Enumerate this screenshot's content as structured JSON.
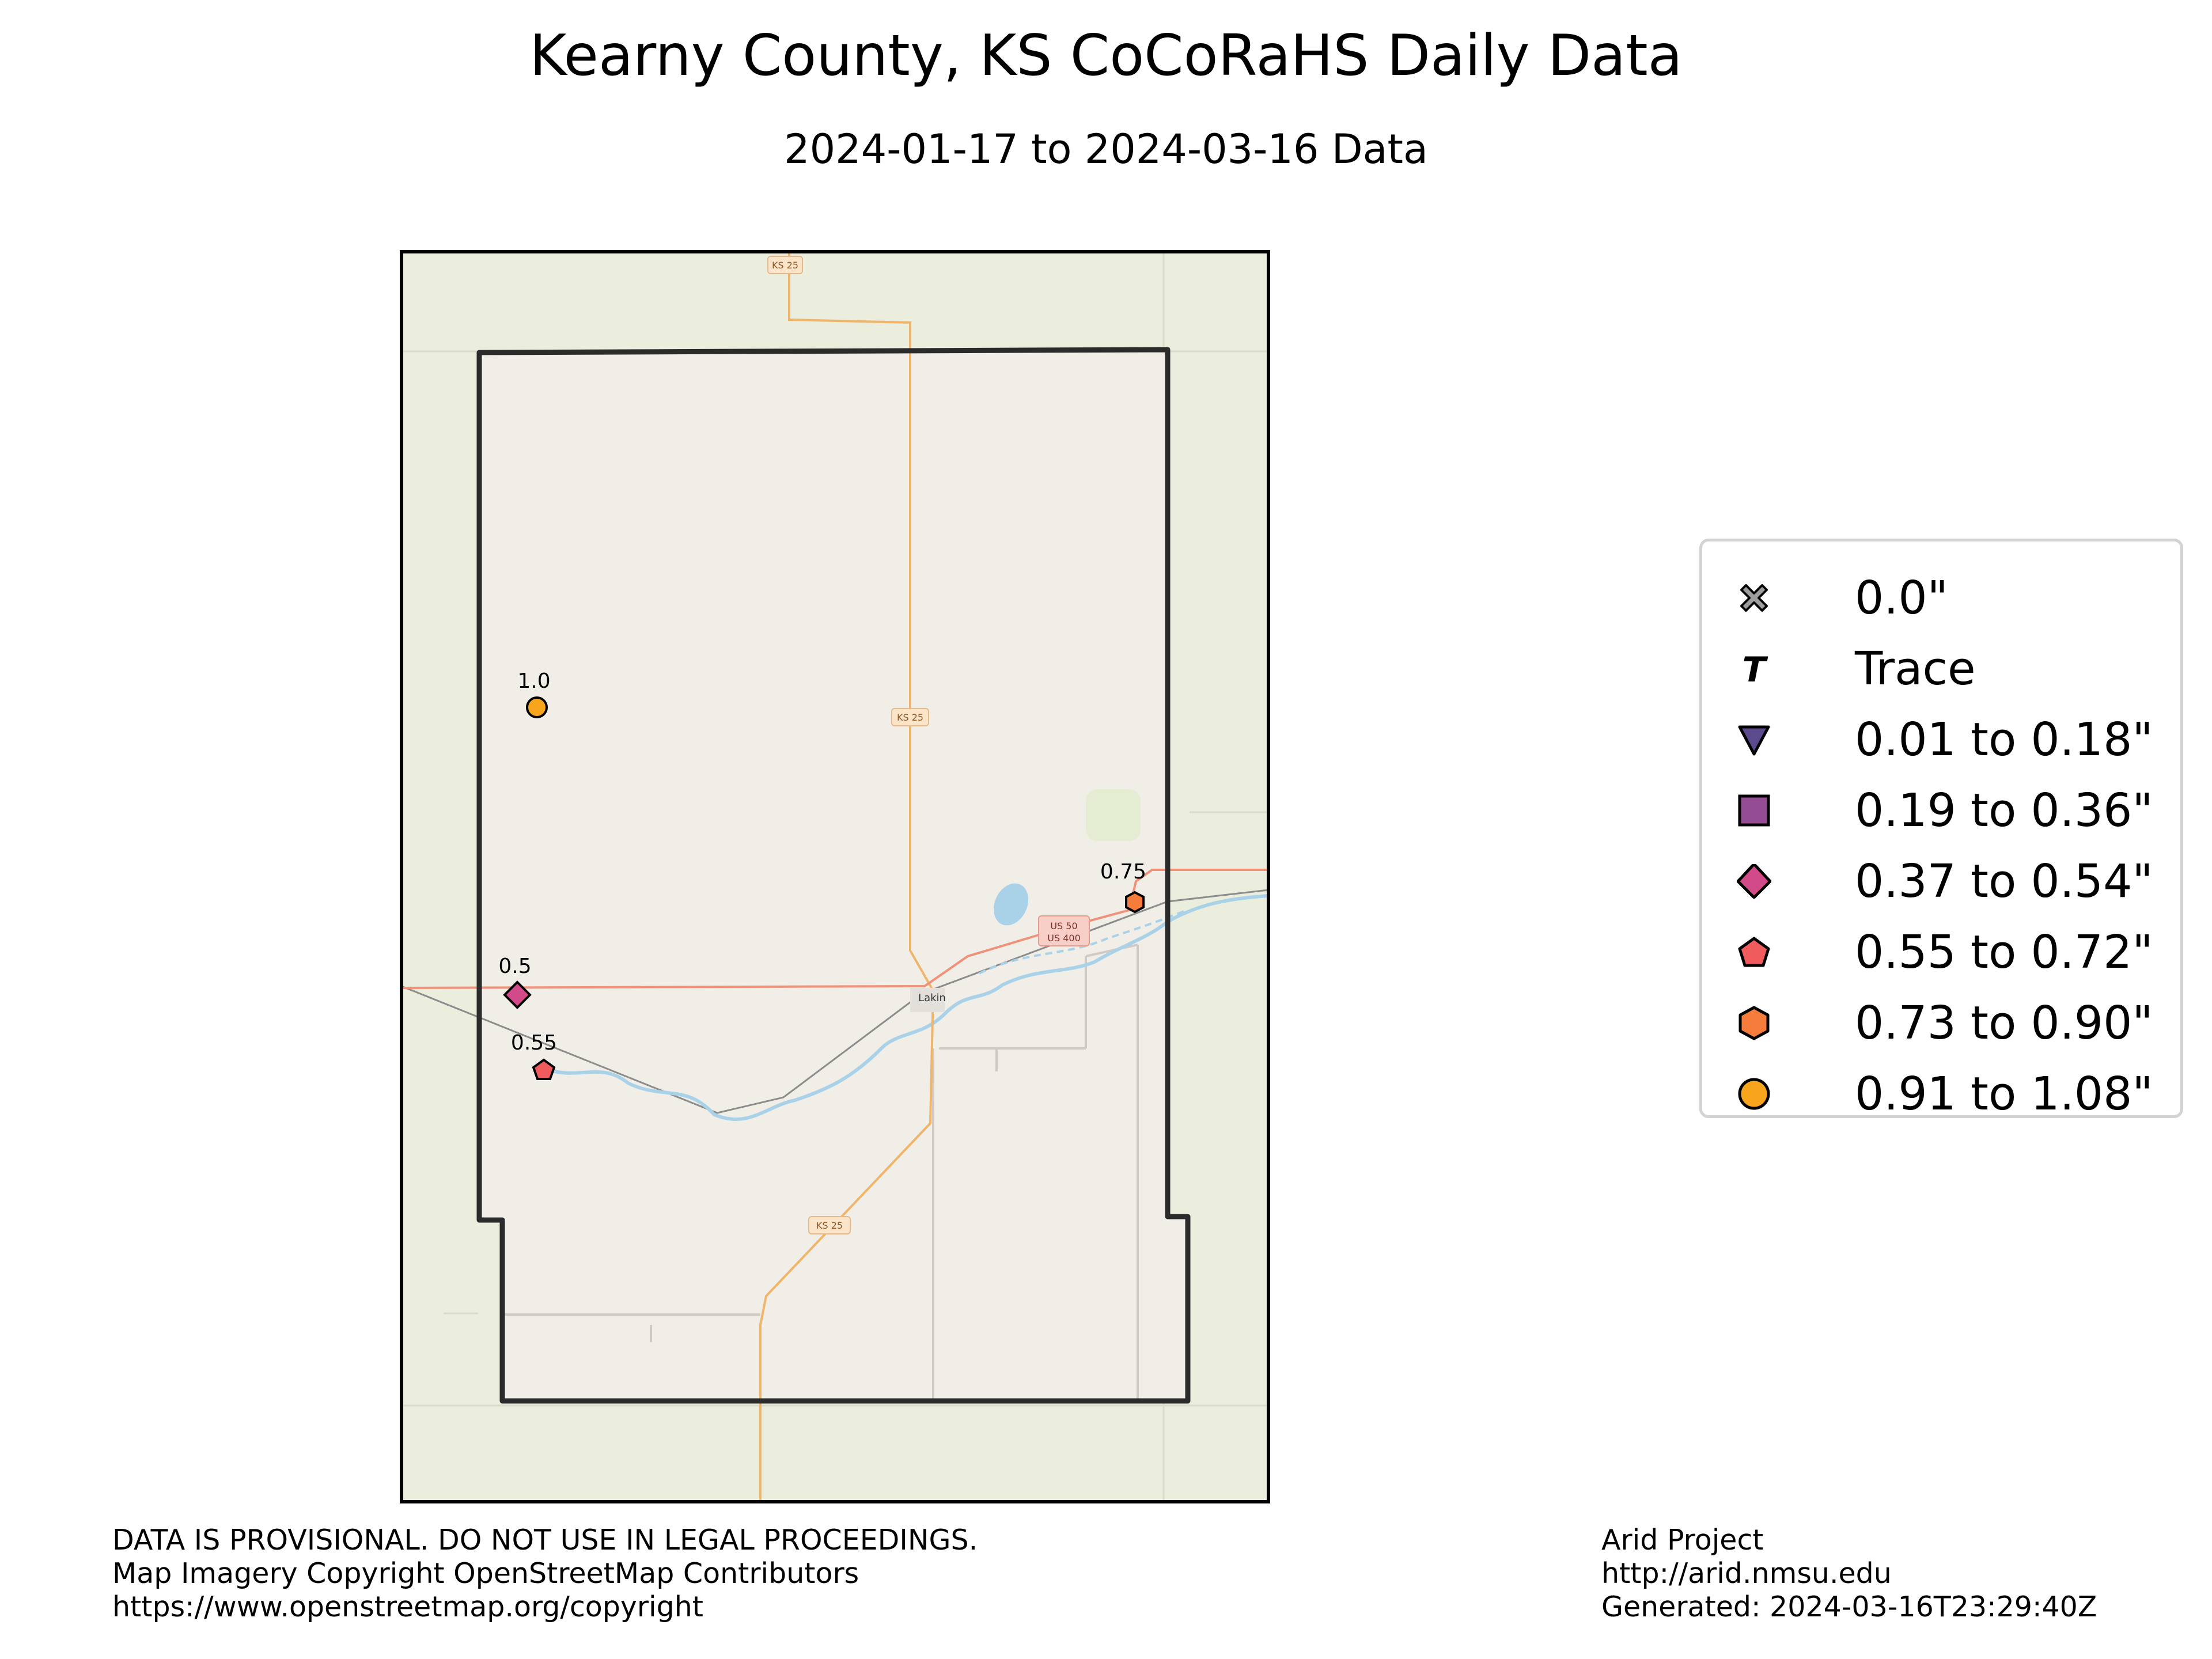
{
  "title": "Kearny County, KS CoCoRaHS Daily Data",
  "subtitle": "2024-01-17 to 2024-03-16 Data",
  "colors": {
    "zero": "#9e9e9e",
    "trace": "#000000",
    "bin1": "#5b4a8c",
    "bin2": "#944c94",
    "bin3": "#d34a8a",
    "bin4": "#f05b5e",
    "bin5": "#f57c3a",
    "bin6": "#f7a51c",
    "map_outer": "#ebeddd",
    "map_inner": "#f1eee8",
    "road_state": "#f0b56a",
    "road_us": "#f0917a",
    "water": "#a9d2e8"
  },
  "map": {
    "road_labels": [
      "KS 25",
      "KS 25",
      "KS 25",
      "US 50",
      "US 400"
    ],
    "town_label": "Lakin",
    "stations": [
      {
        "label": "1.0",
        "value": 1.0,
        "symbol": "circle",
        "color": "#f7a51c"
      },
      {
        "label": "0.75",
        "value": 0.75,
        "symbol": "hexagon",
        "color": "#f57c3a"
      },
      {
        "label": "0.5",
        "value": 0.5,
        "symbol": "diamond",
        "color": "#d34a8a"
      },
      {
        "label": "0.55",
        "value": 0.55,
        "symbol": "pentagon",
        "color": "#f05b5e"
      }
    ]
  },
  "legend": {
    "items": [
      {
        "label": "0.0\"",
        "symbol": "x-icon"
      },
      {
        "label": "Trace",
        "symbol": "trace-t-icon"
      },
      {
        "label": "0.01 to 0.18\"",
        "symbol": "triangle-down-icon"
      },
      {
        "label": "0.19 to 0.36\"",
        "symbol": "square-icon"
      },
      {
        "label": "0.37 to 0.54\"",
        "symbol": "diamond-icon"
      },
      {
        "label": "0.55 to 0.72\"",
        "symbol": "pentagon-icon"
      },
      {
        "label": "0.73 to 0.90\"",
        "symbol": "hexagon-icon"
      },
      {
        "label": "0.91 to 1.08\"",
        "symbol": "circle-icon"
      }
    ]
  },
  "footer": {
    "left": [
      "DATA IS PROVISIONAL. DO NOT USE IN LEGAL PROCEEDINGS.",
      "Map Imagery Copyright OpenStreetMap Contributors",
      "https://www.openstreetmap.org/copyright"
    ],
    "right": [
      "Arid Project",
      "http://arid.nmsu.edu",
      "Generated: 2024-03-16T23:29:40Z"
    ]
  }
}
